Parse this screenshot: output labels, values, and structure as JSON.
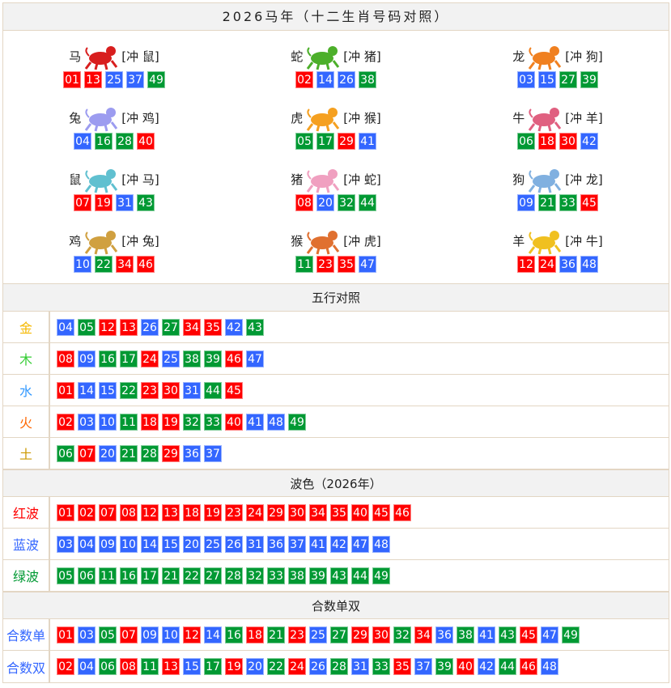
{
  "title": "2026马年（十二生肖号码对照）",
  "colors": {
    "red": "#ff0000",
    "blue": "#3366ff",
    "green": "#009933"
  },
  "zodiac": [
    {
      "name": "马",
      "clash": "[冲 鼠]",
      "icon": "horse-icon",
      "color": "#d81e1e",
      "nums": [
        "01",
        "13",
        "25",
        "37",
        "49"
      ]
    },
    {
      "name": "蛇",
      "clash": "[冲 猪]",
      "icon": "snake-icon",
      "color": "#4caf2a",
      "nums": [
        "02",
        "14",
        "26",
        "38"
      ]
    },
    {
      "name": "龙",
      "clash": "[冲 狗]",
      "icon": "dragon-icon",
      "color": "#f08020",
      "nums": [
        "03",
        "15",
        "27",
        "39"
      ]
    },
    {
      "name": "兔",
      "clash": "[冲 鸡]",
      "icon": "rabbit-icon",
      "color": "#9c9cf0",
      "nums": [
        "04",
        "16",
        "28",
        "40"
      ]
    },
    {
      "name": "虎",
      "clash": "[冲 猴]",
      "icon": "tiger-icon",
      "color": "#f5a020",
      "nums": [
        "05",
        "17",
        "29",
        "41"
      ]
    },
    {
      "name": "牛",
      "clash": "[冲 羊]",
      "icon": "ox-icon",
      "color": "#e06080",
      "nums": [
        "06",
        "18",
        "30",
        "42"
      ]
    },
    {
      "name": "鼠",
      "clash": "[冲 马]",
      "icon": "rat-icon",
      "color": "#60c0d0",
      "nums": [
        "07",
        "19",
        "31",
        "43"
      ]
    },
    {
      "name": "猪",
      "clash": "[冲 蛇]",
      "icon": "pig-icon",
      "color": "#f0a0c0",
      "nums": [
        "08",
        "20",
        "32",
        "44"
      ]
    },
    {
      "name": "狗",
      "clash": "[冲 龙]",
      "icon": "dog-icon",
      "color": "#80b0e0",
      "nums": [
        "09",
        "21",
        "33",
        "45"
      ]
    },
    {
      "name": "鸡",
      "clash": "[冲 兔]",
      "icon": "rooster-icon",
      "color": "#d0a040",
      "nums": [
        "10",
        "22",
        "34",
        "46"
      ]
    },
    {
      "name": "猴",
      "clash": "[冲 虎]",
      "icon": "monkey-icon",
      "color": "#e07030",
      "nums": [
        "11",
        "23",
        "35",
        "47"
      ]
    },
    {
      "name": "羊",
      "clash": "[冲 牛]",
      "icon": "goat-icon",
      "color": "#f0c020",
      "nums": [
        "12",
        "24",
        "36",
        "48"
      ]
    }
  ],
  "wuxing": {
    "title": "五行对照",
    "rows": [
      {
        "label": "金",
        "color": "#f5b800",
        "nums": [
          "04",
          "05",
          "12",
          "13",
          "26",
          "27",
          "34",
          "35",
          "42",
          "43"
        ]
      },
      {
        "label": "木",
        "color": "#33cc33",
        "nums": [
          "08",
          "09",
          "16",
          "17",
          "24",
          "25",
          "38",
          "39",
          "46",
          "47"
        ]
      },
      {
        "label": "水",
        "color": "#3399ff",
        "nums": [
          "01",
          "14",
          "15",
          "22",
          "23",
          "30",
          "31",
          "44",
          "45"
        ]
      },
      {
        "label": "火",
        "color": "#ff6600",
        "nums": [
          "02",
          "03",
          "10",
          "11",
          "18",
          "19",
          "32",
          "33",
          "40",
          "41",
          "48",
          "49"
        ]
      },
      {
        "label": "土",
        "color": "#cc9900",
        "nums": [
          "06",
          "07",
          "20",
          "21",
          "28",
          "29",
          "36",
          "37"
        ]
      }
    ]
  },
  "bose": {
    "title": "波色（2026年）",
    "rows": [
      {
        "label": "红波",
        "color": "#ff0000",
        "nums": [
          "01",
          "02",
          "07",
          "08",
          "12",
          "13",
          "18",
          "19",
          "23",
          "24",
          "29",
          "30",
          "34",
          "35",
          "40",
          "45",
          "46"
        ]
      },
      {
        "label": "蓝波",
        "color": "#3366ff",
        "nums": [
          "03",
          "04",
          "09",
          "10",
          "14",
          "15",
          "20",
          "25",
          "26",
          "31",
          "36",
          "37",
          "41",
          "42",
          "47",
          "48"
        ]
      },
      {
        "label": "绿波",
        "color": "#009933",
        "nums": [
          "05",
          "06",
          "11",
          "16",
          "17",
          "21",
          "22",
          "27",
          "28",
          "32",
          "33",
          "38",
          "39",
          "43",
          "44",
          "49"
        ]
      }
    ]
  },
  "heshu": {
    "title": "合数单双",
    "rows": [
      {
        "label": "合数单",
        "color": "#3366ff",
        "nums": [
          "01",
          "03",
          "05",
          "07",
          "09",
          "10",
          "12",
          "14",
          "16",
          "18",
          "21",
          "23",
          "25",
          "27",
          "29",
          "30",
          "32",
          "34",
          "36",
          "38",
          "41",
          "43",
          "45",
          "47",
          "49"
        ]
      },
      {
        "label": "合数双",
        "color": "#3366ff",
        "nums": [
          "02",
          "04",
          "06",
          "08",
          "11",
          "13",
          "15",
          "17",
          "19",
          "20",
          "22",
          "24",
          "26",
          "28",
          "31",
          "33",
          "35",
          "37",
          "39",
          "40",
          "42",
          "44",
          "46",
          "48"
        ]
      }
    ]
  }
}
